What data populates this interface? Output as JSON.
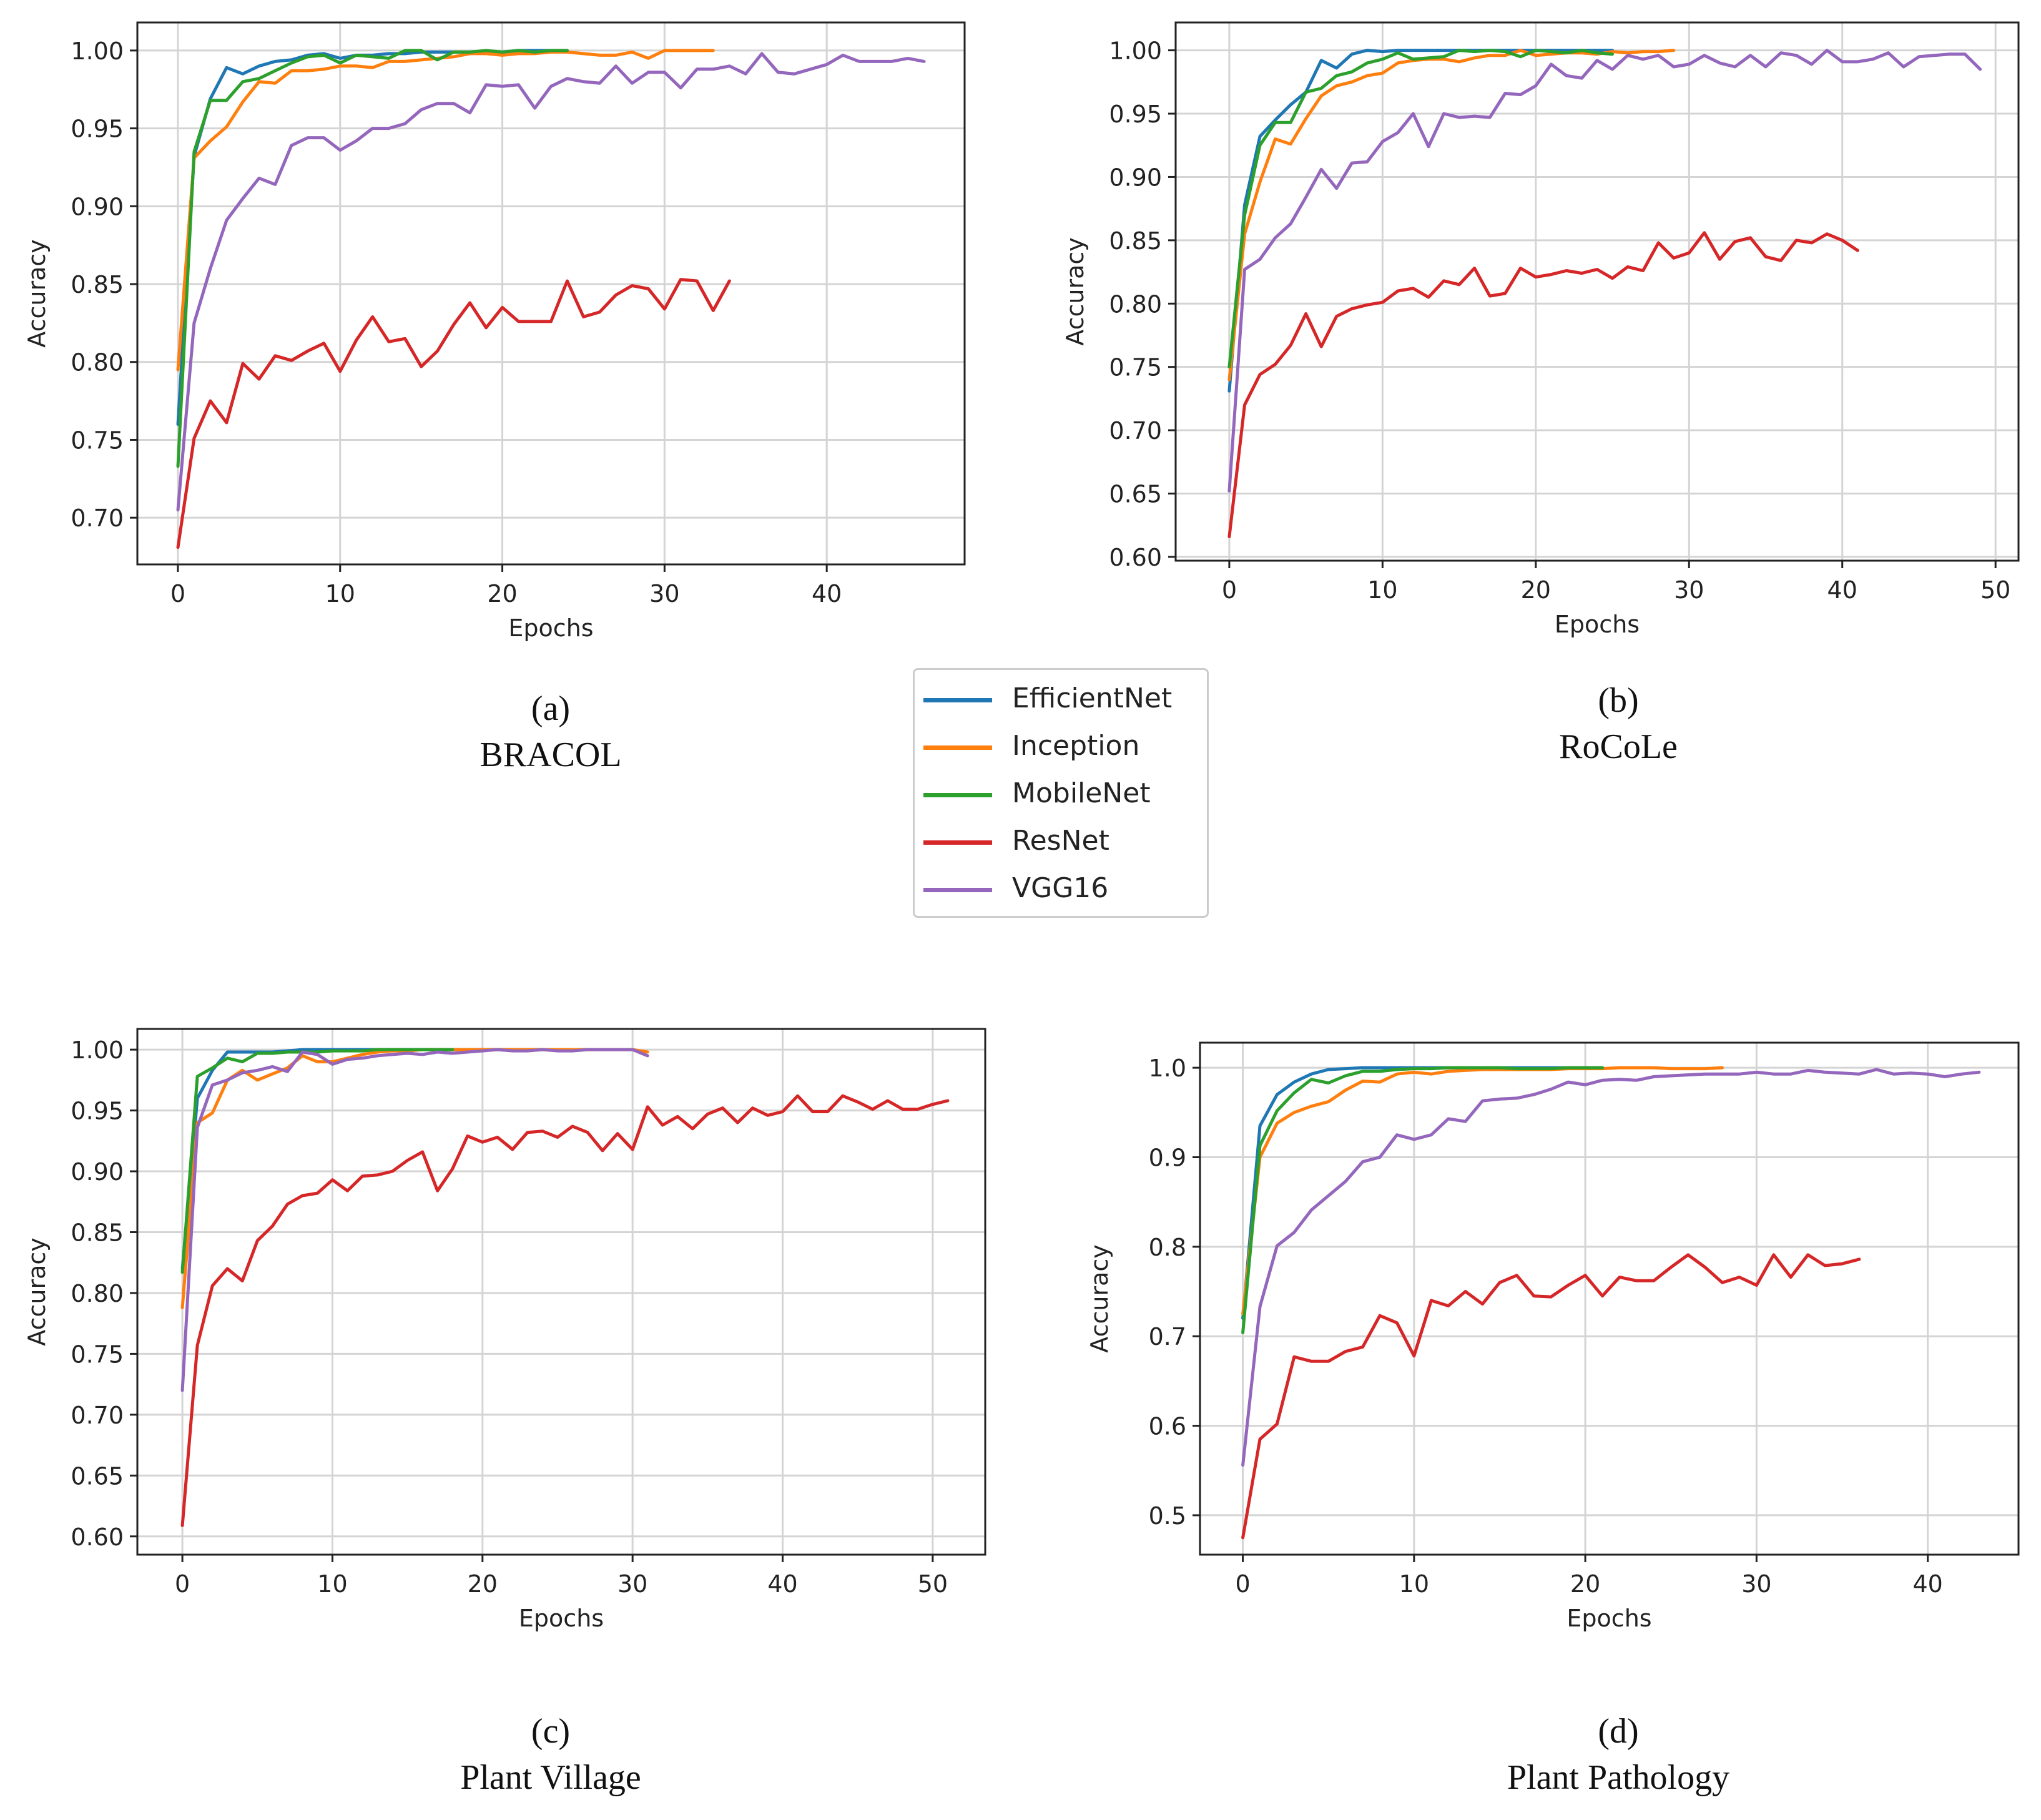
{
  "figure": {
    "legend": [
      {
        "name": "EfficientNet",
        "color": "#1f77b4"
      },
      {
        "name": "Inception",
        "color": "#ff7f0e"
      },
      {
        "name": "MobileNet",
        "color": "#2ca02c"
      },
      {
        "name": "ResNet",
        "color": "#d62728"
      },
      {
        "name": "VGG16",
        "color": "#9467bd"
      }
    ]
  },
  "captions": [
    {
      "letter": "(a)",
      "name": "BRACOL"
    },
    {
      "letter": "(b)",
      "name": "RoCoLe"
    },
    {
      "letter": "(c)",
      "name": "Plant Village"
    },
    {
      "letter": "(d)",
      "name": "Plant Pathology"
    }
  ],
  "chart_data": [
    {
      "type": "line",
      "title": "BRACOL",
      "xlabel": "Epochs",
      "ylabel": "Accuracy",
      "xlim": [
        -2.5,
        48.5
      ],
      "ylim": [
        0.67,
        1.018
      ],
      "xticks": [
        0,
        10,
        20,
        30,
        40
      ],
      "xtick_labels": [
        "0",
        "10",
        "20",
        "30",
        "40"
      ],
      "yticks": [
        0.7,
        0.75,
        0.8,
        0.85,
        0.9,
        0.95,
        1.0
      ],
      "ytick_labels": [
        "0.70",
        "0.75",
        "0.80",
        "0.85",
        "0.90",
        "0.95",
        "1.00"
      ],
      "series": [
        {
          "name": "EfficientNet",
          "color": "#1f77b4",
          "values": [
            0.76,
            0.932,
            0.969,
            0.989,
            0.985,
            0.99,
            0.993,
            0.994,
            0.997,
            0.998,
            0.995,
            0.997,
            0.997,
            0.998,
            0.998,
            0.999,
            0.999,
            0.999,
            0.999,
            0.999,
            0.999,
            1.0,
            1.0,
            1.0,
            1.0
          ]
        },
        {
          "name": "Inception",
          "color": "#ff7f0e",
          "values": [
            0.795,
            0.931,
            0.942,
            0.951,
            0.967,
            0.98,
            0.979,
            0.987,
            0.987,
            0.988,
            0.99,
            0.99,
            0.989,
            0.993,
            0.993,
            0.994,
            0.995,
            0.996,
            0.998,
            0.998,
            0.997,
            0.998,
            0.998,
            0.999,
            0.999,
            0.998,
            0.997,
            0.997,
            0.999,
            0.995,
            1.0,
            1.0,
            1.0,
            1.0
          ]
        },
        {
          "name": "MobileNet",
          "color": "#2ca02c",
          "values": [
            0.733,
            0.935,
            0.968,
            0.968,
            0.98,
            0.982,
            0.987,
            0.992,
            0.996,
            0.997,
            0.992,
            0.997,
            0.996,
            0.995,
            1.0,
            1.0,
            0.994,
            0.999,
            0.999,
            1.0,
            0.999,
            1.0,
            0.999,
            1.0,
            1.0
          ]
        },
        {
          "name": "ResNet",
          "color": "#d62728",
          "values": [
            0.681,
            0.751,
            0.775,
            0.761,
            0.799,
            0.789,
            0.804,
            0.801,
            0.807,
            0.812,
            0.794,
            0.814,
            0.829,
            0.813,
            0.815,
            0.797,
            0.807,
            0.824,
            0.838,
            0.822,
            0.835,
            0.826,
            0.826,
            0.826,
            0.852,
            0.829,
            0.832,
            0.843,
            0.849,
            0.847,
            0.834,
            0.853,
            0.852,
            0.833,
            0.852
          ]
        },
        {
          "name": "VGG16",
          "color": "#9467bd",
          "values": [
            0.705,
            0.825,
            0.86,
            0.891,
            0.905,
            0.918,
            0.914,
            0.939,
            0.944,
            0.944,
            0.936,
            0.942,
            0.95,
            0.95,
            0.953,
            0.962,
            0.966,
            0.966,
            0.96,
            0.978,
            0.977,
            0.978,
            0.963,
            0.977,
            0.982,
            0.98,
            0.979,
            0.99,
            0.979,
            0.986,
            0.986,
            0.976,
            0.988,
            0.988,
            0.99,
            0.985,
            0.998,
            0.986,
            0.985,
            0.988,
            0.991,
            0.997,
            0.993,
            0.993,
            0.993,
            0.995,
            0.993
          ]
        }
      ]
    },
    {
      "type": "line",
      "title": "RoCoLe",
      "xlabel": "Epochs",
      "ylabel": "Accuracy",
      "xlim": [
        -3.5,
        51.5
      ],
      "ylim": [
        0.597,
        1.022
      ],
      "xticks": [
        0,
        10,
        20,
        30,
        40,
        50
      ],
      "xtick_labels": [
        "0",
        "10",
        "20",
        "30",
        "40",
        "50"
      ],
      "yticks": [
        0.6,
        0.65,
        0.7,
        0.75,
        0.8,
        0.85,
        0.9,
        0.95,
        1.0
      ],
      "ytick_labels": [
        "0.60",
        "0.65",
        "0.70",
        "0.75",
        "0.80",
        "0.85",
        "0.90",
        "0.95",
        "1.00"
      ],
      "series": [
        {
          "name": "EfficientNet",
          "color": "#1f77b4",
          "values": [
            0.731,
            0.878,
            0.932,
            0.945,
            0.957,
            0.967,
            0.992,
            0.986,
            0.997,
            1.0,
            0.999,
            1.0,
            1.0,
            1.0,
            1.0,
            1.0,
            1.0,
            1.0,
            1.0,
            1.0,
            1.0,
            1.0,
            1.0,
            1.0,
            1.0,
            1.0
          ]
        },
        {
          "name": "Inception",
          "color": "#ff7f0e",
          "values": [
            0.74,
            0.855,
            0.896,
            0.93,
            0.926,
            0.946,
            0.964,
            0.972,
            0.975,
            0.98,
            0.982,
            0.99,
            0.992,
            0.993,
            0.993,
            0.991,
            0.994,
            0.996,
            0.996,
            1.0,
            0.996,
            0.997,
            0.998,
            0.998,
            0.997,
            0.999,
            0.998,
            0.999,
            0.999,
            1.0
          ]
        },
        {
          "name": "MobileNet",
          "color": "#2ca02c",
          "values": [
            0.75,
            0.87,
            0.925,
            0.943,
            0.943,
            0.967,
            0.97,
            0.98,
            0.983,
            0.99,
            0.993,
            0.998,
            0.993,
            0.994,
            0.995,
            1.0,
            0.999,
            1.0,
            0.999,
            0.995,
            1.0,
            0.999,
            0.998,
            1.0,
            0.998,
            0.997
          ]
        },
        {
          "name": "ResNet",
          "color": "#d62728",
          "values": [
            0.616,
            0.72,
            0.744,
            0.752,
            0.767,
            0.792,
            0.766,
            0.79,
            0.796,
            0.799,
            0.801,
            0.81,
            0.812,
            0.805,
            0.818,
            0.815,
            0.828,
            0.806,
            0.808,
            0.828,
            0.821,
            0.823,
            0.826,
            0.824,
            0.827,
            0.82,
            0.829,
            0.826,
            0.848,
            0.836,
            0.84,
            0.856,
            0.835,
            0.849,
            0.852,
            0.837,
            0.834,
            0.85,
            0.848,
            0.855,
            0.85,
            0.842
          ]
        },
        {
          "name": "VGG16",
          "color": "#9467bd",
          "values": [
            0.652,
            0.827,
            0.835,
            0.852,
            0.863,
            0.884,
            0.906,
            0.891,
            0.911,
            0.912,
            0.928,
            0.935,
            0.95,
            0.924,
            0.95,
            0.947,
            0.948,
            0.947,
            0.966,
            0.965,
            0.972,
            0.989,
            0.98,
            0.978,
            0.992,
            0.985,
            0.996,
            0.993,
            0.996,
            0.987,
            0.989,
            0.996,
            0.99,
            0.987,
            0.996,
            0.987,
            0.998,
            0.996,
            0.989,
            1.0,
            0.991,
            0.991,
            0.993,
            0.998,
            0.987,
            0.995,
            0.996,
            0.997,
            0.997,
            0.985
          ]
        }
      ]
    },
    {
      "type": "line",
      "title": "Plant Village",
      "xlabel": "Epochs",
      "ylabel": "Accuracy",
      "xlim": [
        -3.0,
        53.5
      ],
      "ylim": [
        0.585,
        1.017
      ],
      "xticks": [
        0,
        10,
        20,
        30,
        40,
        50
      ],
      "xtick_labels": [
        "0",
        "10",
        "20",
        "30",
        "40",
        "50"
      ],
      "yticks": [
        0.6,
        0.65,
        0.7,
        0.75,
        0.8,
        0.85,
        0.9,
        0.95,
        1.0
      ],
      "ytick_labels": [
        "0.60",
        "0.65",
        "0.70",
        "0.75",
        "0.80",
        "0.85",
        "0.90",
        "0.95",
        "1.00"
      ],
      "series": [
        {
          "name": "EfficientNet",
          "color": "#1f77b4",
          "values": [
            0.82,
            0.96,
            0.983,
            0.998,
            0.998,
            0.998,
            0.998,
            0.999,
            1.0,
            1.0,
            1.0,
            1.0,
            1.0,
            1.0,
            1.0,
            1.0,
            1.0,
            1.0,
            1.0,
            1.0,
            1.0,
            1.0,
            1.0,
            1.0,
            1.0
          ]
        },
        {
          "name": "Inception",
          "color": "#ff7f0e",
          "values": [
            0.788,
            0.94,
            0.948,
            0.975,
            0.983,
            0.975,
            0.98,
            0.985,
            0.995,
            0.99,
            0.99,
            0.993,
            0.996,
            0.998,
            0.999,
            0.999,
            1.0,
            1.0,
            1.0,
            1.0,
            1.0,
            1.0,
            1.0,
            1.0,
            1.0,
            1.0,
            1.0,
            1.0,
            1.0,
            1.0,
            1.0,
            0.998
          ]
        },
        {
          "name": "MobileNet",
          "color": "#2ca02c",
          "values": [
            0.817,
            0.978,
            0.985,
            0.993,
            0.99,
            0.997,
            0.997,
            0.998,
            0.998,
            0.998,
            0.999,
            0.999,
            0.999,
            1.0,
            1.0,
            1.0,
            1.0,
            1.0,
            1.0
          ]
        },
        {
          "name": "ResNet",
          "color": "#d62728",
          "values": [
            0.609,
            0.757,
            0.806,
            0.82,
            0.81,
            0.843,
            0.855,
            0.873,
            0.88,
            0.882,
            0.893,
            0.884,
            0.896,
            0.897,
            0.9,
            0.909,
            0.916,
            0.884,
            0.902,
            0.929,
            0.924,
            0.928,
            0.918,
            0.932,
            0.933,
            0.928,
            0.937,
            0.932,
            0.917,
            0.931,
            0.918,
            0.953,
            0.938,
            0.945,
            0.935,
            0.947,
            0.952,
            0.94,
            0.952,
            0.946,
            0.949,
            0.962,
            0.949,
            0.949,
            0.962,
            0.957,
            0.951,
            0.958,
            0.951,
            0.951,
            0.955,
            0.958
          ]
        },
        {
          "name": "VGG16",
          "color": "#9467bd",
          "values": [
            0.72,
            0.936,
            0.971,
            0.975,
            0.981,
            0.983,
            0.986,
            0.982,
            0.998,
            0.996,
            0.988,
            0.992,
            0.993,
            0.995,
            0.996,
            0.997,
            0.996,
            0.998,
            0.997,
            0.998,
            0.999,
            1.0,
            0.999,
            0.999,
            1.0,
            0.999,
            0.999,
            1.0,
            1.0,
            1.0,
            1.0,
            0.995
          ]
        }
      ]
    },
    {
      "type": "line",
      "title": "Plant Pathology",
      "xlabel": "Epochs",
      "ylabel": "Accuracy",
      "xlim": [
        -2.5,
        45.3
      ],
      "ylim": [
        0.456,
        1.028
      ],
      "xticks": [
        0,
        10,
        20,
        30,
        40
      ],
      "xtick_labels": [
        "0",
        "10",
        "20",
        "30",
        "40"
      ],
      "yticks": [
        0.5,
        0.6,
        0.7,
        0.8,
        0.9,
        1.0
      ],
      "ytick_labels": [
        "0.5",
        "0.6",
        "0.7",
        "0.8",
        "0.9",
        "1.0"
      ],
      "series": [
        {
          "name": "EfficientNet",
          "color": "#1f77b4",
          "values": [
            0.72,
            0.935,
            0.97,
            0.984,
            0.993,
            0.998,
            0.999,
            1.0,
            1.0,
            1.0,
            1.0,
            1.0,
            1.0,
            1.0,
            1.0,
            1.0,
            1.0,
            1.0,
            1.0,
            1.0,
            1.0,
            1.0
          ]
        },
        {
          "name": "Inception",
          "color": "#ff7f0e",
          "values": [
            0.725,
            0.9,
            0.938,
            0.95,
            0.957,
            0.962,
            0.975,
            0.985,
            0.984,
            0.993,
            0.995,
            0.993,
            0.996,
            0.997,
            0.998,
            0.998,
            0.998,
            0.998,
            0.998,
            0.999,
            0.999,
            0.999,
            1.0,
            1.0,
            1.0,
            0.999,
            0.999,
            0.999,
            1.0
          ]
        },
        {
          "name": "MobileNet",
          "color": "#2ca02c",
          "values": [
            0.704,
            0.913,
            0.952,
            0.972,
            0.987,
            0.983,
            0.991,
            0.996,
            0.996,
            0.998,
            0.999,
            0.999,
            1.0,
            1.0,
            1.0,
            1.0,
            0.999,
            0.999,
            0.999,
            1.0,
            1.0,
            1.0
          ]
        },
        {
          "name": "ResNet",
          "color": "#d62728",
          "values": [
            0.475,
            0.585,
            0.602,
            0.677,
            0.672,
            0.672,
            0.683,
            0.688,
            0.723,
            0.715,
            0.678,
            0.74,
            0.734,
            0.75,
            0.736,
            0.76,
            0.768,
            0.745,
            0.744,
            0.757,
            0.768,
            0.745,
            0.766,
            0.762,
            0.762,
            0.777,
            0.791,
            0.777,
            0.76,
            0.766,
            0.757,
            0.791,
            0.766,
            0.791,
            0.779,
            0.781,
            0.786
          ]
        },
        {
          "name": "VGG16",
          "color": "#9467bd",
          "values": [
            0.556,
            0.733,
            0.801,
            0.816,
            0.841,
            0.857,
            0.873,
            0.895,
            0.9,
            0.925,
            0.92,
            0.925,
            0.943,
            0.94,
            0.963,
            0.965,
            0.966,
            0.97,
            0.976,
            0.984,
            0.981,
            0.986,
            0.987,
            0.986,
            0.99,
            0.991,
            0.992,
            0.993,
            0.993,
            0.993,
            0.995,
            0.993,
            0.993,
            0.997,
            0.995,
            0.994,
            0.993,
            0.998,
            0.993,
            0.994,
            0.993,
            0.99,
            0.993,
            0.995
          ]
        }
      ]
    }
  ]
}
